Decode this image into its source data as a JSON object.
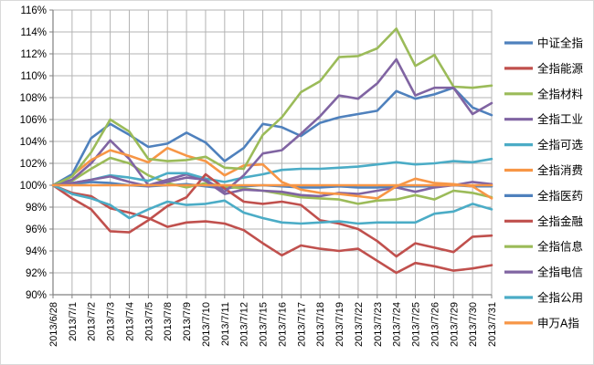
{
  "chart_data": {
    "type": "line",
    "title": "",
    "grid": true,
    "legend_position": "right",
    "y_axis": {
      "min": 90,
      "max": 116,
      "step": 2,
      "format": "percent",
      "tick_labels": [
        "90%",
        "92%",
        "94%",
        "96%",
        "98%",
        "100%",
        "102%",
        "104%",
        "106%",
        "108%",
        "110%",
        "112%",
        "114%",
        "116%"
      ]
    },
    "x_labels": [
      "2013/6/28",
      "2013/7/1",
      "2013/7/2",
      "2013/7/3",
      "2013/7/4",
      "2013/7/5",
      "2013/7/8",
      "2013/7/9",
      "2013/7/10",
      "2013/7/11",
      "2013/7/12",
      "2013/7/15",
      "2013/7/16",
      "2013/7/17",
      "2013/7/18",
      "2013/7/19",
      "2013/7/22",
      "2013/7/23",
      "2013/7/24",
      "2013/7/25",
      "2013/7/26",
      "2013/7/29",
      "2013/7/30",
      "2013/7/31"
    ],
    "colors": {
      "gridline": "#b3b3b3",
      "axis": "#808080",
      "text": "#000000",
      "background": "#ffffff"
    },
    "series": [
      {
        "name": "中证全指",
        "color": "#4F81BD",
        "values": [
          100,
          100.1,
          100.3,
          100.2,
          100,
          99.9,
          100,
          100.1,
          99.9,
          99.7,
          99.9,
          100,
          99.9,
          99.8,
          99.8,
          99.9,
          99.8,
          99.8,
          99.9,
          99.9,
          99.9,
          100,
          99.9,
          99.9
        ]
      },
      {
        "name": "全指能源",
        "color": "#C0504D",
        "values": [
          100,
          99.3,
          99,
          97.9,
          97.5,
          97,
          96.2,
          96.6,
          96.7,
          96.5,
          95.9,
          94.7,
          93.6,
          94.5,
          94.2,
          94,
          94.2,
          93.1,
          92,
          92.9,
          92.6,
          92.2,
          92.4,
          92.7
        ]
      },
      {
        "name": "全指材料",
        "color": "#9BBB59",
        "values": [
          100,
          100.4,
          101.5,
          102.5,
          102,
          100.9,
          100.2,
          99.8,
          100.2,
          99.9,
          99.7,
          99.5,
          99.2,
          98.9,
          98.8,
          98.7,
          98.3,
          98.6,
          98.7,
          99.1,
          98.7,
          99.5,
          99.3,
          98.9
        ]
      },
      {
        "name": "全指工业",
        "color": "#8064A2",
        "values": [
          100,
          100.5,
          102,
          104.1,
          102.4,
          100,
          100.5,
          101,
          100.4,
          99.2,
          99.6,
          99.5,
          99.4,
          99.1,
          99,
          99.3,
          99.2,
          99.5,
          99.8,
          99.4,
          99.8,
          100,
          100.3,
          100.1
        ]
      },
      {
        "name": "全指可选",
        "color": "#4BACC6",
        "values": [
          100,
          100.2,
          100.5,
          100.9,
          100.7,
          100.4,
          101.1,
          101.1,
          100.6,
          100.3,
          100.7,
          101,
          101.4,
          101.5,
          101.5,
          101.6,
          101.7,
          101.9,
          102.1,
          101.9,
          102,
          102.2,
          102.1,
          102.4
        ]
      },
      {
        "name": "全指消费",
        "color": "#F79646",
        "values": [
          100,
          100.9,
          102.3,
          103.2,
          102.7,
          102.1,
          103.4,
          102.7,
          102.2,
          100.9,
          101.8,
          101.9,
          100.3,
          99.6,
          99.3,
          99.2,
          99,
          98.8,
          99.9,
          100.6,
          100.2,
          100.1,
          99.9,
          98.8
        ]
      },
      {
        "name": "全指医药",
        "color": "#4F81BD",
        "values": [
          100,
          101,
          104.3,
          105.6,
          104.6,
          103.5,
          103.8,
          104.8,
          103.9,
          102.2,
          103.4,
          105.6,
          105.3,
          104.5,
          105.7,
          106.2,
          106.5,
          106.8,
          108.6,
          107.9,
          108.3,
          108.9,
          107.1,
          106.4
        ]
      },
      {
        "name": "全指金融",
        "color": "#C0504D",
        "values": [
          100,
          98.8,
          97.8,
          95.8,
          95.7,
          96.8,
          98.1,
          98.9,
          101,
          99.7,
          98.5,
          98.3,
          98.5,
          98.2,
          96.8,
          96.5,
          96,
          94.9,
          93.5,
          94.7,
          94.3,
          93.9,
          95.3,
          95.4
        ]
      },
      {
        "name": "全指信息",
        "color": "#9BBB59",
        "values": [
          100,
          100.8,
          103,
          106,
          104.9,
          102.4,
          102.2,
          102.3,
          102.6,
          101.6,
          101.5,
          104.6,
          106.2,
          108.5,
          109.5,
          111.7,
          111.8,
          112.5,
          114.3,
          110.9,
          111.9,
          109,
          108.9,
          109.1
        ]
      },
      {
        "name": "全指电信",
        "color": "#8064A2",
        "values": [
          100,
          100.2,
          100.5,
          100.8,
          100.3,
          99.9,
          100.3,
          100.7,
          100.5,
          99.4,
          100.9,
          102.9,
          103.2,
          104.7,
          106.3,
          108.2,
          107.9,
          109.3,
          111.5,
          108.2,
          108.9,
          108.9,
          106.5,
          107.5
        ]
      },
      {
        "name": "全指公用",
        "color": "#4BACC6",
        "values": [
          100,
          99.2,
          98.8,
          98.2,
          97,
          97.8,
          98.5,
          98.2,
          98.3,
          98.6,
          97.5,
          97,
          96.6,
          96.5,
          96.6,
          96.7,
          96.5,
          96.6,
          96.6,
          96.6,
          97.4,
          97.6,
          98.3,
          97.8
        ]
      },
      {
        "name": "申万A指",
        "color": "#F79646",
        "values": [
          100,
          100,
          100,
          100,
          100,
          100,
          100,
          100,
          100,
          100,
          100,
          100,
          100,
          100,
          100,
          100,
          100,
          100,
          100,
          100,
          100,
          100,
          100,
          100
        ]
      }
    ]
  }
}
